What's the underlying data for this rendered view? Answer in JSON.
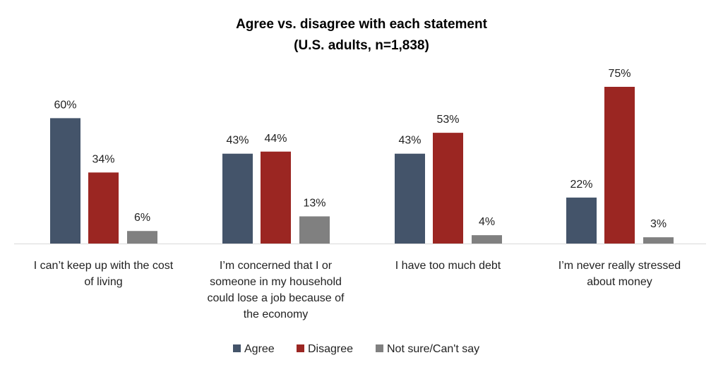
{
  "chart_data": {
    "type": "bar",
    "title": "Agree vs. disagree with each statement",
    "subtitle": "(U.S. adults, n=1,838)",
    "xlabel": "",
    "ylabel": "",
    "ylim": [
      0,
      80
    ],
    "grid": false,
    "legend_position": "bottom",
    "categories": [
      [
        "I can’t keep up with the cost",
        "of living"
      ],
      [
        "I’m concerned that I or",
        "someone in my household",
        "could lose a job because of",
        "the economy"
      ],
      [
        "I have too much debt"
      ],
      [
        "I’m never really stressed",
        "about money"
      ]
    ],
    "series": [
      {
        "name": "Agree",
        "color": "#44546A",
        "values": [
          60,
          43,
          43,
          22
        ],
        "labels": [
          "60%",
          "43%",
          "43%",
          "22%"
        ]
      },
      {
        "name": "Disagree",
        "color": "#9B2622",
        "values": [
          34,
          44,
          53,
          75
        ],
        "labels": [
          "34%",
          "44%",
          "53%",
          "75%"
        ]
      },
      {
        "name": "Not sure/Can't say",
        "color": "#808080",
        "values": [
          6,
          13,
          4,
          3
        ],
        "labels": [
          "6%",
          "13%",
          "4%",
          "3%"
        ]
      }
    ]
  }
}
